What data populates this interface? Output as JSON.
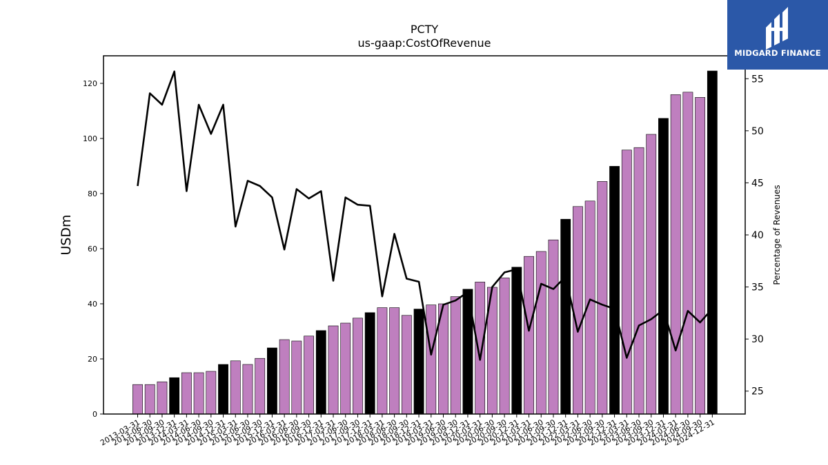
{
  "chart_data": {
    "type": "bar+line",
    "title": "PCTY",
    "subtitle": "us-gaap:CostOfRevenue",
    "ylabel": "USDm",
    "y2label": "Percentage of Revenues",
    "ylim": [
      0,
      130
    ],
    "y2lim": [
      22.8,
      57.2
    ],
    "yticks": [
      0,
      20,
      40,
      60,
      80,
      100,
      120
    ],
    "y2ticks": [
      25,
      30,
      35,
      40,
      45,
      50,
      55
    ],
    "categories": [
      "2013-03-31",
      "2013-06-30",
      "2013-09-30",
      "2013-12-31",
      "2014-03-31",
      "2014-06-30",
      "2014-09-30",
      "2014-12-31",
      "2015-03-31",
      "2015-06-30",
      "2015-09-30",
      "2015-12-31",
      "2016-03-31",
      "2016-06-30",
      "2016-09-30",
      "2016-12-31",
      "2017-03-31",
      "2017-06-30",
      "2017-09-30",
      "2017-12-31",
      "2018-03-31",
      "2018-06-30",
      "2018-09-30",
      "2018-12-31",
      "2019-03-31",
      "2019-06-30",
      "2019-09-30",
      "2019-12-31",
      "2020-03-31",
      "2020-06-30",
      "2020-09-30",
      "2020-12-31",
      "2021-03-31",
      "2021-06-30",
      "2021-09-30",
      "2021-12-31",
      "2022-03-31",
      "2022-06-30",
      "2022-09-30",
      "2022-12-31",
      "2023-03-31",
      "2023-06-30",
      "2023-09-30",
      "2023-12-31",
      "2024-03-31",
      "2024-06-30",
      "2024-09-30",
      "2024-12-31"
    ],
    "series": [
      {
        "kind": "bar",
        "values": [
          10.7,
          10.7,
          11.7,
          13.2,
          15.0,
          15.0,
          15.5,
          18.0,
          19.3,
          18.0,
          20.2,
          24.0,
          27.0,
          26.5,
          28.3,
          30.3,
          32.0,
          33.0,
          34.8,
          36.8,
          38.6,
          38.6,
          35.8,
          38.1,
          39.6,
          40.0,
          42.6,
          45.3,
          47.9,
          46.0,
          49.4,
          53.3,
          57.2,
          59.0,
          63.2,
          70.7,
          75.3,
          77.3,
          84.4,
          89.9,
          95.8,
          96.7,
          101.5,
          107.3,
          115.9,
          116.8,
          114.9,
          124.5
        ],
        "colors": [
          "#bf7fbf",
          "#bf7fbf",
          "#bf7fbf",
          "#000000",
          "#bf7fbf",
          "#bf7fbf",
          "#bf7fbf",
          "#000000",
          "#bf7fbf",
          "#bf7fbf",
          "#bf7fbf",
          "#000000",
          "#bf7fbf",
          "#bf7fbf",
          "#bf7fbf",
          "#000000",
          "#bf7fbf",
          "#bf7fbf",
          "#bf7fbf",
          "#000000",
          "#bf7fbf",
          "#bf7fbf",
          "#bf7fbf",
          "#000000",
          "#bf7fbf",
          "#bf7fbf",
          "#bf7fbf",
          "#000000",
          "#bf7fbf",
          "#bf7fbf",
          "#bf7fbf",
          "#000000",
          "#bf7fbf",
          "#bf7fbf",
          "#bf7fbf",
          "#000000",
          "#bf7fbf",
          "#bf7fbf",
          "#bf7fbf",
          "#000000",
          "#bf7fbf",
          "#bf7fbf",
          "#bf7fbf",
          "#000000",
          "#bf7fbf",
          "#bf7fbf",
          "#bf7fbf",
          "#000000"
        ]
      },
      {
        "kind": "line",
        "axis": "right",
        "color": "#000000",
        "values": [
          44.7,
          53.6,
          52.5,
          55.7,
          44.2,
          52.5,
          49.7,
          52.5,
          40.8,
          45.2,
          44.7,
          43.6,
          38.6,
          44.4,
          43.5,
          44.2,
          35.6,
          43.6,
          42.9,
          42.8,
          34.1,
          40.1,
          35.8,
          35.5,
          28.5,
          33.3,
          33.7,
          34.5,
          28.0,
          35.0,
          36.4,
          36.7,
          30.8,
          35.3,
          34.8,
          36.0,
          30.7,
          33.8,
          33.3,
          32.9,
          28.2,
          31.3,
          31.9,
          32.8,
          28.9,
          32.7,
          31.6,
          32.9
        ]
      }
    ],
    "grid": false,
    "legend": "none"
  },
  "logo": {
    "text": "MIDGARD FINANCE",
    "bg_color": "#2b58a8"
  }
}
